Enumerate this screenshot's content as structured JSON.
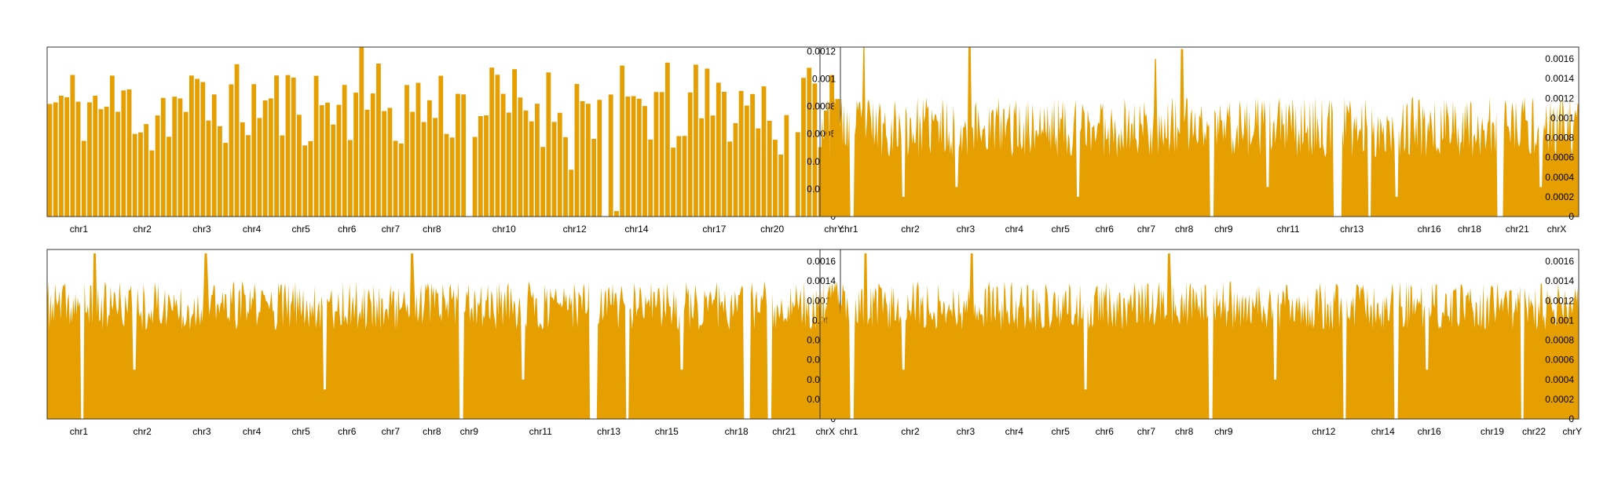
{
  "colors": {
    "bar": "#E69F00",
    "axis": "#333333",
    "text": "#000000"
  },
  "chart_data": [
    {
      "type": "bar",
      "panel": "top-left",
      "yaxis_position": "right",
      "ylim": [
        0,
        0.00123
      ],
      "yticks": [
        0,
        0.0002,
        0.0004,
        0.0006,
        0.0008,
        0.001,
        0.0012
      ],
      "ytick_labels": [
        "0",
        "0.0002",
        "0.0004",
        "0.0006",
        "0.0008",
        "0.001",
        "0.0012"
      ],
      "chromosomes": [
        "chr1",
        "chr2",
        "chr3",
        "chr4",
        "chr5",
        "chr6",
        "chr7",
        "chr8",
        "chr10",
        "chr12",
        "chr14",
        "chr17",
        "chr20",
        "chrY"
      ],
      "chrom_ticks": [
        0.04,
        0.12,
        0.195,
        0.258,
        0.32,
        0.378,
        0.433,
        0.485,
        0.576,
        0.665,
        0.743,
        0.841,
        0.914,
        1.0
      ],
      "seed": 11,
      "n_bins": 140,
      "gaps": [
        [
          0.532,
          0.537
        ],
        [
          0.703,
          0.707
        ],
        [
          0.935,
          0.94
        ]
      ],
      "baseline_min": 0.0005,
      "baseline_max": 0.00112,
      "dips": [
        [
          0.13,
          0.00048
        ],
        [
          0.2,
          0.00046
        ],
        [
          0.44,
          0.00055
        ],
        [
          0.663,
          0.00034
        ],
        [
          0.72,
          4e-05
        ],
        [
          0.79,
          0.0005
        ],
        [
          0.925,
          0.00045
        ]
      ],
      "peaks": [
        [
          0.398,
          0.00123
        ],
        [
          0.705,
          0.00122
        ]
      ]
    },
    {
      "type": "area",
      "panel": "top-right",
      "yaxis_position": "right",
      "ylim": [
        0,
        0.00172
      ],
      "yticks": [
        0,
        0.0002,
        0.0004,
        0.0006,
        0.0008,
        0.001,
        0.0012,
        0.0014,
        0.0016
      ],
      "ytick_labels": [
        "0",
        "0.0002",
        "0.0004",
        "0.0006",
        "0.0008",
        "0.001",
        "0.0012",
        "0.0014",
        "0.0016"
      ],
      "chromosomes": [
        "chr1",
        "chr2",
        "chr3",
        "chr4",
        "chr5",
        "chr6",
        "chr7",
        "chr8",
        "chr9",
        "chr11",
        "chr13",
        "chr16",
        "chr18",
        "chr21",
        "chrX"
      ],
      "chrom_ticks": [
        0.038,
        0.119,
        0.192,
        0.256,
        0.317,
        0.375,
        0.43,
        0.48,
        0.532,
        0.617,
        0.701,
        0.803,
        0.856,
        0.919,
        0.971
      ],
      "seed": 23,
      "n_bins": 700,
      "gaps": [
        [
          0.04,
          0.045
        ],
        [
          0.513,
          0.519
        ],
        [
          0.677,
          0.688
        ],
        [
          0.722,
          0.727
        ],
        [
          0.892,
          0.9
        ]
      ],
      "baseline_min": 0.0006,
      "baseline_max": 0.00122,
      "dips": [
        [
          0.11,
          0.0002
        ],
        [
          0.18,
          0.0003
        ],
        [
          0.34,
          0.0002
        ],
        [
          0.59,
          0.0003
        ],
        [
          0.76,
          0.0002
        ],
        [
          0.95,
          0.0003
        ]
      ],
      "peaks": [
        [
          0.058,
          0.00172
        ],
        [
          0.197,
          0.00172
        ],
        [
          0.442,
          0.0016
        ],
        [
          0.477,
          0.0017
        ]
      ]
    },
    {
      "type": "area",
      "panel": "bottom-left",
      "yaxis_position": "right",
      "ylim": [
        0,
        0.00172
      ],
      "yticks": [
        0,
        0.0002,
        0.0004,
        0.0006,
        0.0008,
        0.001,
        0.0012,
        0.0014,
        0.0016
      ],
      "ytick_labels": [
        "0",
        "0.0002",
        "0.0004",
        "0.0006",
        "0.0008",
        "0.001",
        "0.0012",
        "0.0014",
        "0.0016"
      ],
      "chromosomes": [
        "chr1",
        "chr2",
        "chr3",
        "chr4",
        "chr5",
        "chr6",
        "chr7",
        "chr8",
        "chr9",
        "chr11",
        "chr13",
        "chr15",
        "chr18",
        "chr21",
        "chrX"
      ],
      "chrom_ticks": [
        0.04,
        0.12,
        0.195,
        0.258,
        0.32,
        0.378,
        0.433,
        0.485,
        0.532,
        0.622,
        0.708,
        0.781,
        0.869,
        0.929,
        0.981
      ],
      "seed": 37,
      "n_bins": 700,
      "gaps": [
        [
          0.042,
          0.047
        ],
        [
          0.52,
          0.525
        ],
        [
          0.683,
          0.694
        ],
        [
          0.73,
          0.734
        ],
        [
          0.878,
          0.886
        ],
        [
          0.908,
          0.914
        ]
      ],
      "baseline_min": 0.0009,
      "baseline_max": 0.0014,
      "dips": [
        [
          0.11,
          0.0005
        ],
        [
          0.2,
          0.0004
        ],
        [
          0.35,
          0.0003
        ],
        [
          0.6,
          0.0004
        ],
        [
          0.8,
          0.0005
        ]
      ],
      "peaks": [
        [
          0.06,
          0.00168
        ],
        [
          0.2,
          0.00168
        ],
        [
          0.46,
          0.00168
        ]
      ]
    },
    {
      "type": "area",
      "panel": "bottom-right",
      "yaxis_position": "right",
      "ylim": [
        0,
        0.00172
      ],
      "yticks": [
        0,
        0.0002,
        0.0004,
        0.0006,
        0.0008,
        0.001,
        0.0012,
        0.0014,
        0.0016
      ],
      "ytick_labels": [
        "0",
        "0.0002",
        "0.0004",
        "0.0006",
        "0.0008",
        "0.001",
        "0.0012",
        "0.0014",
        "0.0016"
      ],
      "chromosomes": [
        "chr1",
        "chr2",
        "chr3",
        "chr4",
        "chr5",
        "chr6",
        "chr7",
        "chr8",
        "chr9",
        "chr12",
        "chr14",
        "chr16",
        "chr19",
        "chr22",
        "chrY"
      ],
      "chrom_ticks": [
        0.038,
        0.119,
        0.192,
        0.256,
        0.317,
        0.375,
        0.43,
        0.48,
        0.532,
        0.664,
        0.742,
        0.803,
        0.886,
        0.941,
        1.0
      ],
      "seed": 53,
      "n_bins": 700,
      "gaps": [
        [
          0.04,
          0.045
        ],
        [
          0.512,
          0.518
        ],
        [
          0.689,
          0.694
        ],
        [
          0.756,
          0.762
        ],
        [
          0.923,
          0.928
        ]
      ],
      "baseline_min": 0.0009,
      "baseline_max": 0.0014,
      "dips": [
        [
          0.11,
          0.0005
        ],
        [
          0.2,
          0.0004
        ],
        [
          0.35,
          0.0003
        ],
        [
          0.6,
          0.0004
        ],
        [
          0.8,
          0.0005
        ]
      ],
      "peaks": [
        [
          0.06,
          0.00168
        ],
        [
          0.2,
          0.00168
        ],
        [
          0.46,
          0.00168
        ]
      ]
    }
  ]
}
